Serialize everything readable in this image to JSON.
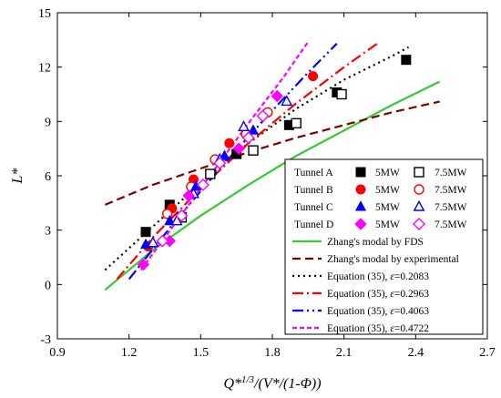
{
  "chart_data": {
    "type": "scatter",
    "xlabel": "Q*1/3/(V*/(1-Φ))",
    "ylabel": "L*",
    "xlim": [
      0.9,
      2.7
    ],
    "ylim": [
      -3,
      15
    ],
    "xticks": [
      "0.9",
      "1.2",
      "1.5",
      "1.8",
      "2.1",
      "2.4",
      "2.7"
    ],
    "yticks": [
      "-3",
      "0",
      "3",
      "6",
      "9",
      "12",
      "15"
    ],
    "grid": false,
    "legend_position": "bottom-right",
    "scatter_series": [
      {
        "legend_row": 0,
        "marker": "square",
        "filled": true,
        "color": "#000000",
        "points": [
          [
            1.27,
            2.9
          ],
          [
            1.37,
            4.4
          ],
          [
            1.65,
            7.2
          ],
          [
            1.87,
            8.8
          ],
          [
            2.07,
            10.6
          ],
          [
            2.36,
            12.4
          ]
        ]
      },
      {
        "legend_row": 0,
        "marker": "square",
        "filled": false,
        "color": "#000000",
        "points": [
          [
            1.42,
            3.7
          ],
          [
            1.54,
            6.1
          ],
          [
            1.72,
            7.4
          ],
          [
            1.9,
            8.9
          ],
          [
            2.09,
            10.5
          ]
        ]
      },
      {
        "legend_row": 1,
        "marker": "circle",
        "filled": true,
        "color": "#ff0000",
        "points": [
          [
            1.28,
            2.1
          ],
          [
            1.38,
            4.2
          ],
          [
            1.47,
            5.8
          ],
          [
            1.62,
            7.8
          ],
          [
            1.97,
            11.5
          ]
        ]
      },
      {
        "legend_row": 1,
        "marker": "circle",
        "filled": false,
        "color": "#ff0000",
        "points": [
          [
            1.36,
            3.9
          ],
          [
            1.46,
            5.4
          ],
          [
            1.56,
            6.9
          ],
          [
            1.69,
            8.3
          ],
          [
            1.78,
            9.5
          ]
        ]
      },
      {
        "legend_row": 2,
        "marker": "triangle",
        "filled": true,
        "color": "#0000ff",
        "points": [
          [
            1.27,
            2.2
          ],
          [
            1.37,
            3.5
          ],
          [
            1.48,
            5.4
          ],
          [
            1.6,
            7.1
          ],
          [
            1.72,
            8.5
          ]
        ]
      },
      {
        "legend_row": 2,
        "marker": "triangle",
        "filled": false,
        "color": "#0000ff",
        "points": [
          [
            1.3,
            2.3
          ],
          [
            1.4,
            3.5
          ],
          [
            1.47,
            5.0
          ],
          [
            1.58,
            6.9
          ],
          [
            1.68,
            8.7
          ],
          [
            1.86,
            10.1
          ]
        ]
      },
      {
        "legend_row": 3,
        "marker": "diamond",
        "filled": true,
        "color": "#ff00ff",
        "points": [
          [
            1.26,
            1.1
          ],
          [
            1.37,
            2.4
          ],
          [
            1.45,
            4.9
          ],
          [
            1.66,
            7.5
          ],
          [
            1.82,
            10.4
          ]
        ]
      },
      {
        "legend_row": 3,
        "marker": "diamond",
        "filled": false,
        "color": "#ff00ff",
        "points": [
          [
            1.34,
            2.4
          ],
          [
            1.42,
            3.8
          ],
          [
            1.51,
            5.5
          ],
          [
            1.58,
            6.7
          ],
          [
            1.7,
            8.1
          ],
          [
            1.76,
            9.3
          ]
        ]
      }
    ],
    "line_series": [
      {
        "legend_index": 4,
        "name": "Zhang's modal by FDS",
        "color": "#33cc33",
        "dash": "",
        "points": [
          [
            1.1,
            -0.3
          ],
          [
            1.3,
            1.9
          ],
          [
            1.5,
            3.8
          ],
          [
            1.7,
            5.5
          ],
          [
            1.9,
            7.1
          ],
          [
            2.1,
            8.5
          ],
          [
            2.3,
            9.9
          ],
          [
            2.5,
            11.2
          ]
        ]
      },
      {
        "legend_index": 5,
        "name": "Zhang's modal by experimental",
        "color": "#800000",
        "dash": "9,5",
        "points": [
          [
            1.1,
            4.4
          ],
          [
            1.3,
            5.5
          ],
          [
            1.5,
            6.4
          ],
          [
            1.7,
            7.3
          ],
          [
            1.9,
            8.1
          ],
          [
            2.1,
            8.8
          ],
          [
            2.3,
            9.5
          ],
          [
            2.5,
            10.1
          ]
        ]
      },
      {
        "legend_index": 6,
        "name": "Equation (35), ε=0.2083",
        "color": "#000000",
        "dash": "2,4",
        "points": [
          [
            1.1,
            0.8
          ],
          [
            1.3,
            3.2
          ],
          [
            1.5,
            5.6
          ],
          [
            1.7,
            7.8
          ],
          [
            1.9,
            9.7
          ],
          [
            2.1,
            11.3
          ],
          [
            2.3,
            12.6
          ],
          [
            2.37,
            13.1
          ]
        ]
      },
      {
        "legend_index": 7,
        "name": "Equation (35), ε=0.2963",
        "color": "#ff0000",
        "dash": "12,4,2,4",
        "points": [
          [
            1.15,
            0.3
          ],
          [
            1.3,
            2.6
          ],
          [
            1.5,
            5.3
          ],
          [
            1.7,
            7.8
          ],
          [
            1.9,
            10.0
          ],
          [
            2.1,
            12.0
          ],
          [
            2.25,
            13.4
          ]
        ]
      },
      {
        "legend_index": 8,
        "name": "Equation (35), ε=0.4063",
        "color": "#0000ff",
        "dash": "12,4,2,4,2,4",
        "points": [
          [
            1.2,
            0.3
          ],
          [
            1.4,
            3.6
          ],
          [
            1.6,
            6.7
          ],
          [
            1.8,
            9.6
          ],
          [
            1.95,
            11.7
          ],
          [
            2.07,
            13.3
          ]
        ]
      },
      {
        "legend_index": 9,
        "name": "Equation (35), ε=0.4722",
        "color": "#ff00ff",
        "dash": "5,3",
        "points": [
          [
            1.25,
            0.8
          ],
          [
            1.4,
            3.5
          ],
          [
            1.55,
            6.2
          ],
          [
            1.7,
            8.9
          ],
          [
            1.85,
            11.5
          ],
          [
            1.95,
            13.4
          ]
        ]
      }
    ],
    "legend": {
      "tunnel_rows": [
        {
          "label": "Tunnel A",
          "left_label": "5MW",
          "right_label": "7.5MW"
        },
        {
          "label": "Tunnel B",
          "left_label": "5MW",
          "right_label": "7.5MW"
        },
        {
          "label": "Tunnel C",
          "left_label": "5MW",
          "right_label": "7.5MW"
        },
        {
          "label": "Tunnel D",
          "left_label": "5MW",
          "right_label": "7.5MW"
        }
      ]
    }
  }
}
